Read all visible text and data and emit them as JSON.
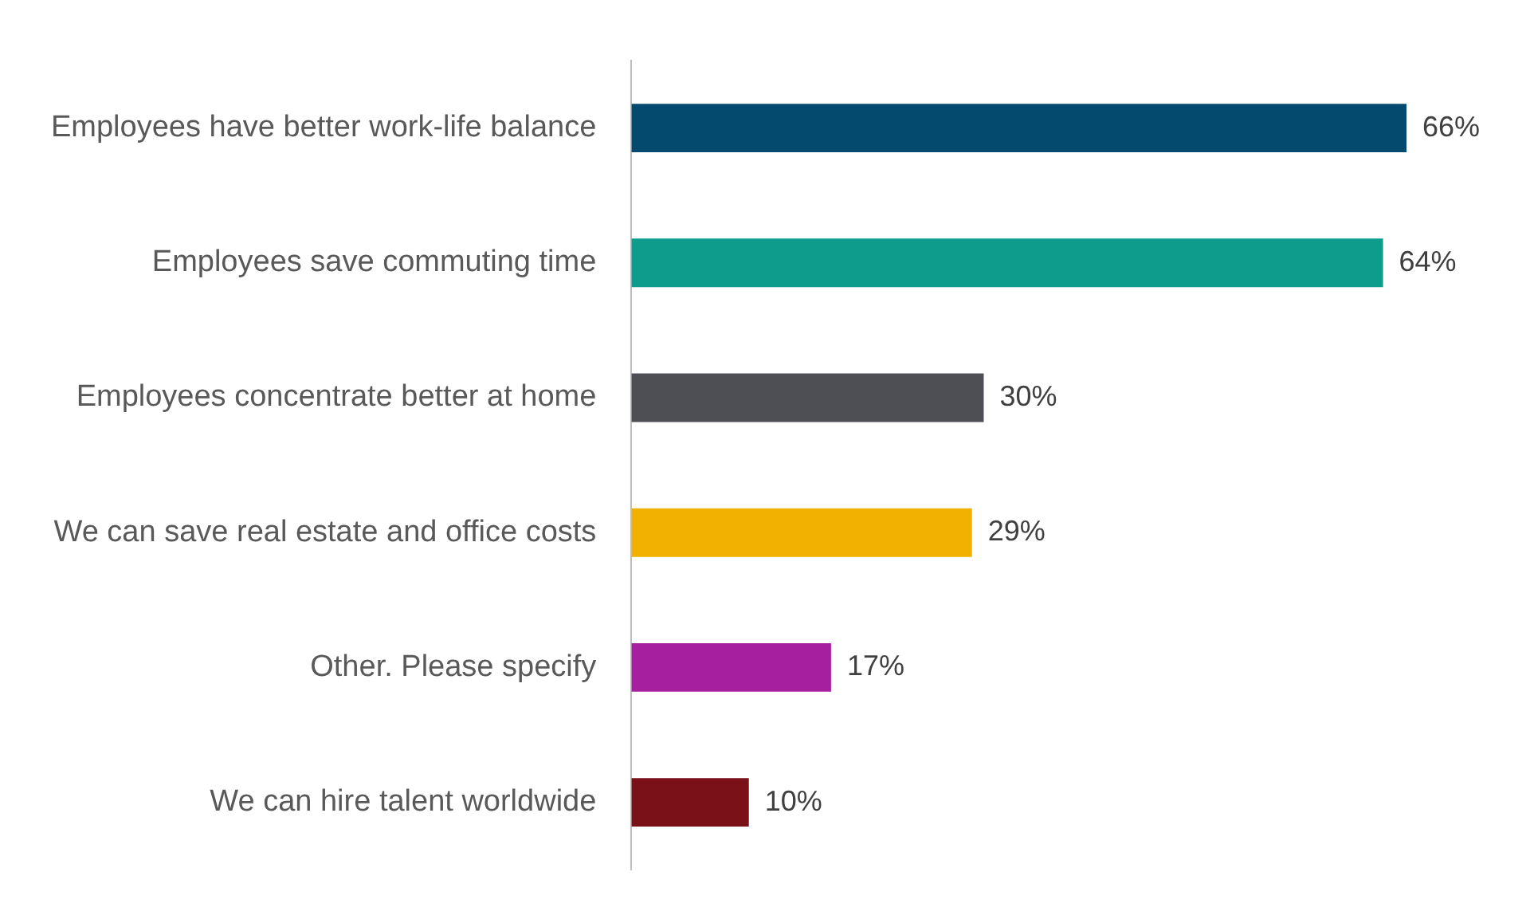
{
  "chart_data": {
    "type": "bar",
    "orientation": "horizontal",
    "categories": [
      "Employees have better work-life balance",
      "Employees save commuting time",
      "Employees concentrate better at home",
      "We can save real estate and office costs",
      "Other. Please specify",
      "We can hire talent worldwide"
    ],
    "values": [
      66,
      64,
      30,
      29,
      17,
      10
    ],
    "colors": [
      "#044a6e",
      "#0e9c8c",
      "#4d4f54",
      "#f2b000",
      "#a61f9e",
      "#7b1118"
    ],
    "value_labels": [
      "66%",
      "64%",
      "30%",
      "29%",
      "17%",
      "10%"
    ],
    "grid": false,
    "legend": false
  }
}
